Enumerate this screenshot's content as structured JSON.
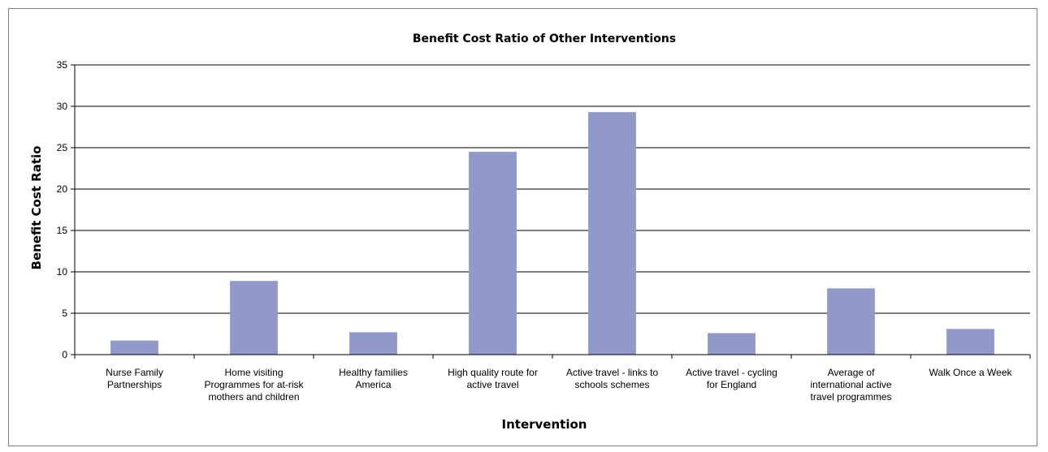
{
  "chart_data": {
    "type": "bar",
    "title": "Benefit Cost Ratio of Other Interventions",
    "xlabel": "Intervention",
    "ylabel": "Benefit Cost Ratio",
    "ylim": [
      0,
      35
    ],
    "yticks": [
      0,
      5,
      10,
      15,
      20,
      25,
      30,
      35
    ],
    "grid": true,
    "legend": "none",
    "bar_color": "#9099c8",
    "categories": [
      [
        "Nurse Family",
        "Partnerships"
      ],
      [
        "Home visiting",
        "Programmes for at-risk",
        "mothers and children"
      ],
      [
        "Healthy families",
        "America"
      ],
      [
        "High quality route for",
        "active travel"
      ],
      [
        "Active travel - links to",
        "schools schemes"
      ],
      [
        "Active travel - cycling",
        "for England"
      ],
      [
        "Average of",
        "international active",
        "travel programmes"
      ],
      [
        "Walk Once a Week"
      ]
    ],
    "values": [
      1.7,
      8.9,
      2.7,
      24.5,
      29.3,
      2.6,
      8.0,
      3.1
    ]
  }
}
